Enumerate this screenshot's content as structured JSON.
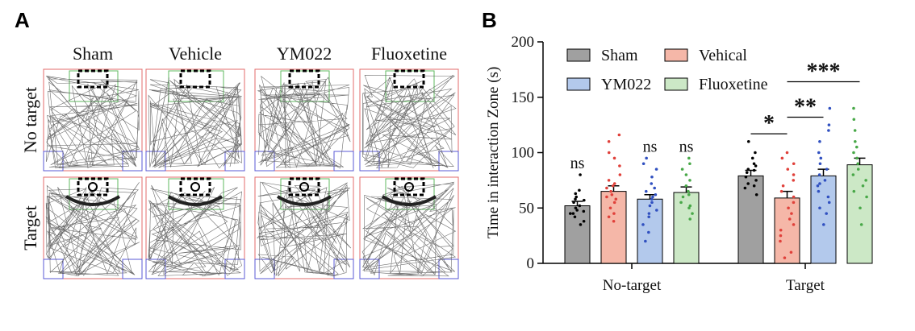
{
  "panel_a": {
    "letter": "A",
    "columns": [
      "Sham",
      "Vehicle",
      "YM022",
      "Fluoxetine"
    ],
    "rows": [
      "No target",
      "Target"
    ],
    "colors": {
      "arena": "#e36b6b",
      "interaction_zone": "#5fb85f",
      "corner": "#5a5ad6",
      "track": "#555555"
    }
  },
  "panel_b": {
    "letter": "B",
    "ns_label": "ns",
    "sig": {
      "one": "*",
      "two": "**",
      "three": "***"
    }
  },
  "chart_data": {
    "type": "bar",
    "categories": [
      "No-target",
      "Target"
    ],
    "ylabel": "Time in interaction Zone (s)",
    "ylim": [
      0,
      200
    ],
    "yticks": [
      0,
      50,
      100,
      150,
      200
    ],
    "legend_position": "top",
    "series": [
      {
        "name": "Sham",
        "color": "#a0a0a0",
        "dot": "#000000",
        "values": [
          52,
          79
        ],
        "sem": [
          4,
          5
        ],
        "points": [
          [
            42,
            45,
            47,
            50,
            52,
            55,
            57,
            60,
            63,
            48,
            38,
            35,
            58,
            66,
            80,
            45
          ],
          [
            62,
            70,
            75,
            78,
            82,
            85,
            88,
            95,
            100,
            110,
            72,
            90,
            68,
            84
          ]
        ]
      },
      {
        "name": "Vehical",
        "color": "#f5b7a8",
        "dot": "#e0403a",
        "values": [
          65,
          59
        ],
        "sem": [
          5,
          6
        ],
        "points": [
          [
            38,
            45,
            50,
            55,
            60,
            62,
            65,
            68,
            70,
            75,
            80,
            88,
            95,
            100,
            110,
            116,
            42,
            58,
            72
          ],
          [
            5,
            10,
            20,
            30,
            35,
            40,
            45,
            50,
            55,
            60,
            65,
            70,
            75,
            80,
            90,
            95,
            100,
            85,
            25
          ]
        ]
      },
      {
        "name": "YM022",
        "color": "#b3c9ec",
        "dot": "#3050c0",
        "values": [
          58,
          79
        ],
        "sem": [
          4,
          6
        ],
        "points": [
          [
            20,
            28,
            35,
            42,
            48,
            52,
            55,
            58,
            62,
            65,
            68,
            72,
            78,
            85,
            90,
            95,
            45,
            60
          ],
          [
            35,
            45,
            55,
            60,
            65,
            70,
            75,
            80,
            85,
            90,
            95,
            100,
            110,
            120,
            125,
            140,
            50,
            72
          ]
        ]
      },
      {
        "name": "Fluoxetine",
        "color": "#cce8c6",
        "dot": "#48a848",
        "values": [
          64,
          89
        ],
        "sem": [
          5,
          6
        ],
        "points": [
          [
            40,
            45,
            50,
            55,
            60,
            65,
            70,
            75,
            80,
            85,
            90,
            95,
            52,
            62
          ],
          [
            35,
            50,
            60,
            70,
            75,
            80,
            85,
            90,
            95,
            100,
            105,
            110,
            120,
            130,
            140,
            65
          ]
        ]
      }
    ],
    "annotations": [
      {
        "text": "ns",
        "category": "No-target",
        "series": "Sham"
      },
      {
        "text": "ns",
        "category": "No-target",
        "series": "YM022"
      },
      {
        "text": "ns",
        "category": "No-target",
        "series": "Fluoxetine"
      },
      {
        "text": "*",
        "category": "Target",
        "between": [
          "Sham",
          "Vehical"
        ],
        "y": 117
      },
      {
        "text": "**",
        "category": "Target",
        "between": [
          "Vehical",
          "YM022"
        ],
        "y": 132
      },
      {
        "text": "***",
        "category": "Target",
        "between": [
          "Vehical",
          "Fluoxetine"
        ],
        "y": 164
      }
    ]
  }
}
